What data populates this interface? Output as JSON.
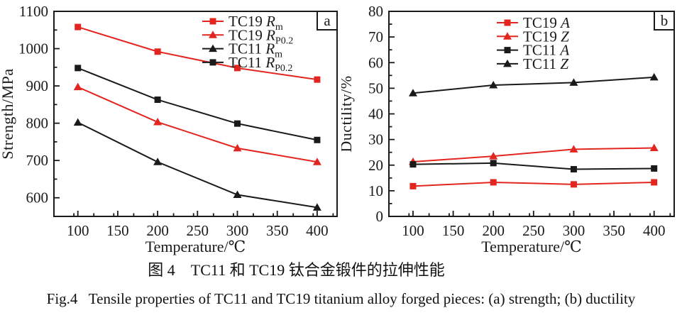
{
  "figure": {
    "caption_cn": "图 4　TC11 和 TC19 钛合金锻件的拉伸性能",
    "caption_en": "Fig.4   Tensile properties of TC11 and TC19 titanium alloy forged pieces: (a) strength; (b) ductility"
  },
  "colors": {
    "red": "#e2261f",
    "black": "#1a1a1a"
  },
  "chart_data": [
    {
      "type": "line",
      "panel": "a",
      "xlabel": "Temperature/℃",
      "ylabel": "Strength/MPa",
      "x": [
        100,
        200,
        300,
        400
      ],
      "xlim": [
        70,
        425
      ],
      "ylim": [
        550,
        1100
      ],
      "xticks": [
        100,
        150,
        200,
        250,
        300,
        350,
        400
      ],
      "yticks": [
        600,
        700,
        800,
        900,
        1000,
        1100
      ],
      "x_minor_step": 25,
      "y_minor_step": 50,
      "grid": false,
      "legend_position": "upper-right-inside",
      "series": [
        {
          "name": "TC19 Rm",
          "name_plain": "TC19",
          "name_italic": "R",
          "name_sub": "m",
          "color": "red",
          "marker": "square",
          "values": [
            1058,
            992,
            948,
            917
          ]
        },
        {
          "name": "TC19 RP0.2",
          "name_plain": "TC19",
          "name_italic": "R",
          "name_sub": "P0.2",
          "color": "red",
          "marker": "triangle",
          "values": [
            897,
            803,
            733,
            696
          ]
        },
        {
          "name": "TC11 Rm",
          "name_plain": "TC11",
          "name_italic": "R",
          "name_sub": "m",
          "color": "black",
          "marker": "triangle",
          "values": [
            802,
            696,
            608,
            574
          ]
        },
        {
          "name": "TC11 RP0.2",
          "name_plain": "TC11",
          "name_italic": "R",
          "name_sub": "P0.2",
          "color": "black",
          "marker": "square",
          "values": [
            948,
            863,
            799,
            755
          ]
        }
      ]
    },
    {
      "type": "line",
      "panel": "b",
      "xlabel": "Temperature/℃",
      "ylabel": "Ductility/%",
      "x": [
        100,
        200,
        300,
        400
      ],
      "xlim": [
        70,
        425
      ],
      "ylim": [
        0,
        80
      ],
      "xticks": [
        100,
        150,
        200,
        250,
        300,
        350,
        400
      ],
      "yticks": [
        0,
        10,
        20,
        30,
        40,
        50,
        60,
        70,
        80
      ],
      "x_minor_step": 25,
      "y_minor_step": 5,
      "grid": false,
      "legend_position": "upper-middle-inside",
      "series": [
        {
          "name": "TC19 A",
          "name_plain": "TC19",
          "name_italic": "A",
          "name_sub": "",
          "color": "red",
          "marker": "square",
          "values": [
            11.8,
            13.3,
            12.5,
            13.3
          ]
        },
        {
          "name": "TC19 Z",
          "name_plain": "TC19",
          "name_italic": "Z",
          "name_sub": "",
          "color": "red",
          "marker": "triangle",
          "values": [
            21.3,
            23.5,
            26.2,
            26.7
          ]
        },
        {
          "name": "TC11 A",
          "name_plain": "TC11",
          "name_italic": "A",
          "name_sub": "",
          "color": "black",
          "marker": "square",
          "values": [
            20.3,
            20.8,
            18.4,
            18.7
          ]
        },
        {
          "name": "TC11 Z",
          "name_plain": "TC11",
          "name_italic": "Z",
          "name_sub": "",
          "color": "black",
          "marker": "triangle",
          "values": [
            48.1,
            51.2,
            52.2,
            54.3
          ]
        }
      ]
    }
  ]
}
